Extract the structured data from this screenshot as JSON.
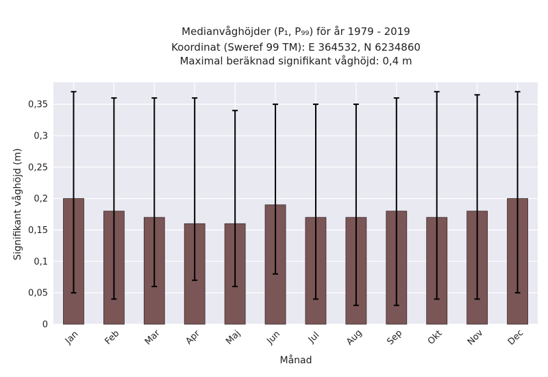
{
  "chart_data": {
    "type": "bar",
    "title_lines": [
      "Medianvåghöjder (P₁, P₉₉) för år 1979 - 2019",
      "Koordinat (Sweref 99 TM): E 364532, N 6234860",
      "Maximal beräknad signifikant våghöjd: 0,4 m"
    ],
    "xlabel": "Månad",
    "ylabel": "Signifikant våghöjd (m)",
    "categories": [
      "Jan",
      "Feb",
      "Mar",
      "Apr",
      "Maj",
      "Jun",
      "Jul",
      "Aug",
      "Sep",
      "Okt",
      "Nov",
      "Dec"
    ],
    "values": [
      0.2,
      0.18,
      0.17,
      0.16,
      0.16,
      0.19,
      0.17,
      0.17,
      0.18,
      0.17,
      0.18,
      0.2
    ],
    "p1": [
      0.05,
      0.04,
      0.06,
      0.07,
      0.06,
      0.08,
      0.04,
      0.03,
      0.03,
      0.04,
      0.04,
      0.05
    ],
    "p99": [
      0.37,
      0.36,
      0.36,
      0.36,
      0.34,
      0.35,
      0.35,
      0.35,
      0.36,
      0.37,
      0.365,
      0.37
    ],
    "yticks": [
      0,
      0.05,
      0.1,
      0.15,
      0.2,
      0.25,
      0.3,
      0.35
    ],
    "ytick_labels": [
      "0",
      "0,05",
      "0,1",
      "0,15",
      "0,2",
      "0,25",
      "0,3",
      "0,35"
    ],
    "ylim": [
      0,
      0.385
    ],
    "grid": true,
    "colors": {
      "bar": "#7b5656",
      "bar_edge": "#3b2a2a",
      "errorbar": "#000000",
      "plot_background": "#e9e9f2",
      "grid": "#ffffff"
    }
  }
}
